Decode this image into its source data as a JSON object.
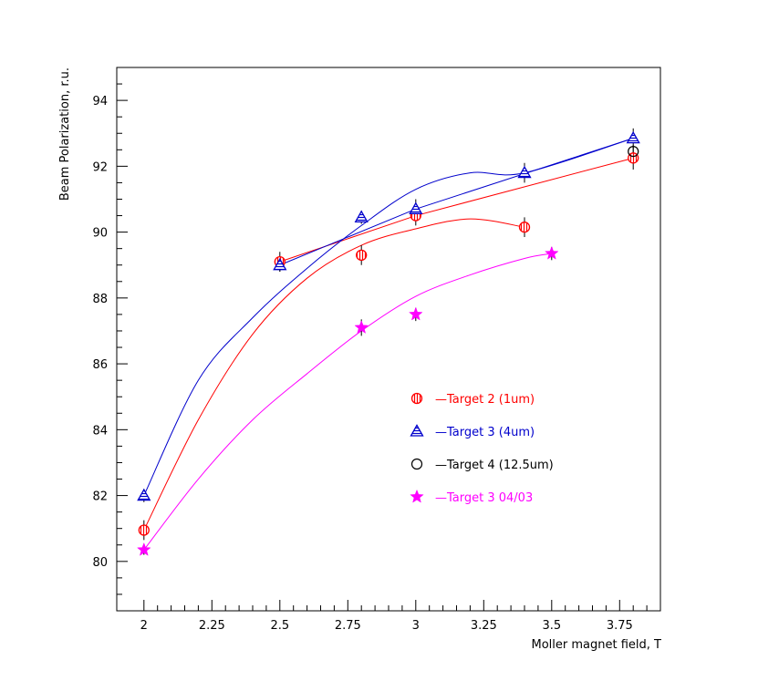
{
  "chart_data": {
    "type": "scatter",
    "title": "",
    "xlabel": "Moller magnet field, T",
    "ylabel": "Beam Polarization, r.u.",
    "xlim": [
      1.9,
      3.9
    ],
    "ylim": [
      78.5,
      95.0
    ],
    "x_ticks": [
      "2",
      "2.25",
      "2.5",
      "2.75",
      "3",
      "3.25",
      "3.5",
      "3.75"
    ],
    "y_ticks": [
      "80",
      "82",
      "84",
      "86",
      "88",
      "90",
      "92",
      "94"
    ],
    "grid": false,
    "legend_position": "center-right",
    "series": [
      {
        "name": "—Target 2 (1um)",
        "color": "#ff0000",
        "marker": "circle-hatched",
        "points": [
          {
            "x": 2.0,
            "y": 80.95,
            "err": 0.3
          },
          {
            "x": 2.5,
            "y": 89.1,
            "err": 0.3
          },
          {
            "x": 2.8,
            "y": 89.3,
            "err": 0.3
          },
          {
            "x": 3.0,
            "y": 90.5,
            "err": 0.3
          },
          {
            "x": 3.4,
            "y": 90.15,
            "err": 0.3
          },
          {
            "x": 3.8,
            "y": 92.25,
            "err": 0.35
          }
        ],
        "fit_curve": [
          [
            2.0,
            80.95
          ],
          [
            2.2,
            84.3
          ],
          [
            2.4,
            86.9
          ],
          [
            2.6,
            88.6
          ],
          [
            2.8,
            89.6
          ],
          [
            3.0,
            90.1
          ],
          [
            3.2,
            90.4
          ],
          [
            3.4,
            90.15
          ]
        ],
        "line": [
          [
            2.5,
            89.1
          ],
          [
            3.0,
            90.5
          ],
          [
            3.8,
            92.25
          ]
        ]
      },
      {
        "name": "—Target 3 (4um)",
        "color": "#0000cc",
        "marker": "triangle-hatched",
        "points": [
          {
            "x": 2.0,
            "y": 82.0,
            "err": 0.2
          },
          {
            "x": 2.5,
            "y": 89.0,
            "err": 0.2
          },
          {
            "x": 2.8,
            "y": 90.45,
            "err": 0.2
          },
          {
            "x": 3.0,
            "y": 90.7,
            "err": 0.3
          },
          {
            "x": 3.4,
            "y": 91.8,
            "err": 0.3
          },
          {
            "x": 3.8,
            "y": 92.85,
            "err": 0.3
          }
        ],
        "fit_curve": [
          [
            2.0,
            82.0
          ],
          [
            2.2,
            85.5
          ],
          [
            2.4,
            87.4
          ],
          [
            2.6,
            88.9
          ],
          [
            2.8,
            90.2
          ],
          [
            3.0,
            91.3
          ],
          [
            3.2,
            91.8
          ],
          [
            3.4,
            91.8
          ],
          [
            3.8,
            92.85
          ]
        ],
        "line": [
          [
            2.5,
            89.0
          ],
          [
            3.0,
            90.7
          ],
          [
            3.8,
            92.85
          ]
        ]
      },
      {
        "name": "—Target 4 (12.5um)",
        "color": "#000000",
        "marker": "circle-open",
        "points": [
          {
            "x": 3.8,
            "y": 92.45,
            "err": 0.2
          }
        ]
      },
      {
        "name": "—Target 3 04/03",
        "color": "#ff00ff",
        "marker": "star",
        "points": [
          {
            "x": 2.0,
            "y": 80.35,
            "err": 0.15
          },
          {
            "x": 2.8,
            "y": 87.1,
            "err": 0.25
          },
          {
            "x": 3.0,
            "y": 87.5,
            "err": 0.2
          },
          {
            "x": 3.5,
            "y": 89.35,
            "err": 0.2
          }
        ],
        "fit_curve": [
          [
            2.0,
            80.35
          ],
          [
            2.2,
            82.5
          ],
          [
            2.4,
            84.3
          ],
          [
            2.6,
            85.7
          ],
          [
            2.8,
            87.0
          ],
          [
            3.0,
            88.05
          ],
          [
            3.2,
            88.7
          ],
          [
            3.4,
            89.2
          ],
          [
            3.5,
            89.35
          ]
        ]
      }
    ]
  }
}
